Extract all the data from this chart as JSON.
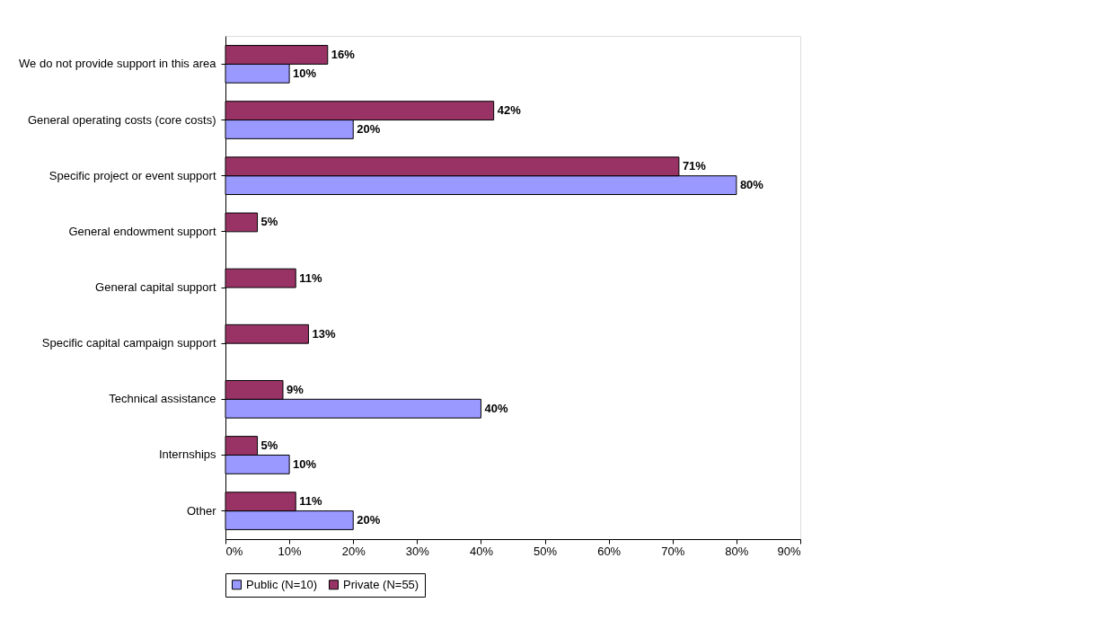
{
  "chart_data": {
    "type": "bar",
    "orientation": "horizontal",
    "categories": [
      "We do not provide support in this area",
      "General operating costs (core costs)",
      "Specific project or event support",
      "General endowment support",
      "General capital support",
      "Specific capital campaign support",
      "Technical assistance",
      "Internships",
      "Other"
    ],
    "series": [
      {
        "name": "Public (N=10)",
        "color": "#9999ff",
        "values": [
          10,
          20,
          80,
          null,
          null,
          null,
          40,
          10,
          20
        ],
        "value_labels": [
          "10%",
          "20%",
          "80%",
          null,
          null,
          null,
          "40%",
          "10%",
          "20%"
        ]
      },
      {
        "name": "Private (N=55)",
        "color": "#993366",
        "values": [
          16,
          42,
          71,
          5,
          11,
          13,
          9,
          5,
          11
        ],
        "value_labels": [
          "16%",
          "42%",
          "71%",
          "5%",
          "11%",
          "13%",
          "9%",
          "5%",
          "11%"
        ]
      }
    ],
    "xlim": [
      0,
      90
    ],
    "xticks": [
      {
        "value": 0,
        "label": "0%"
      },
      {
        "value": 10,
        "label": "10%"
      },
      {
        "value": 20,
        "label": "20%"
      },
      {
        "value": 30,
        "label": "30%"
      },
      {
        "value": 40,
        "label": "40%"
      },
      {
        "value": 50,
        "label": "50%"
      },
      {
        "value": 60,
        "label": "60%"
      },
      {
        "value": 70,
        "label": "70%"
      },
      {
        "value": 80,
        "label": "80%"
      },
      {
        "value": 90,
        "label": "90%"
      }
    ],
    "grid": false,
    "legend": "bottom"
  }
}
